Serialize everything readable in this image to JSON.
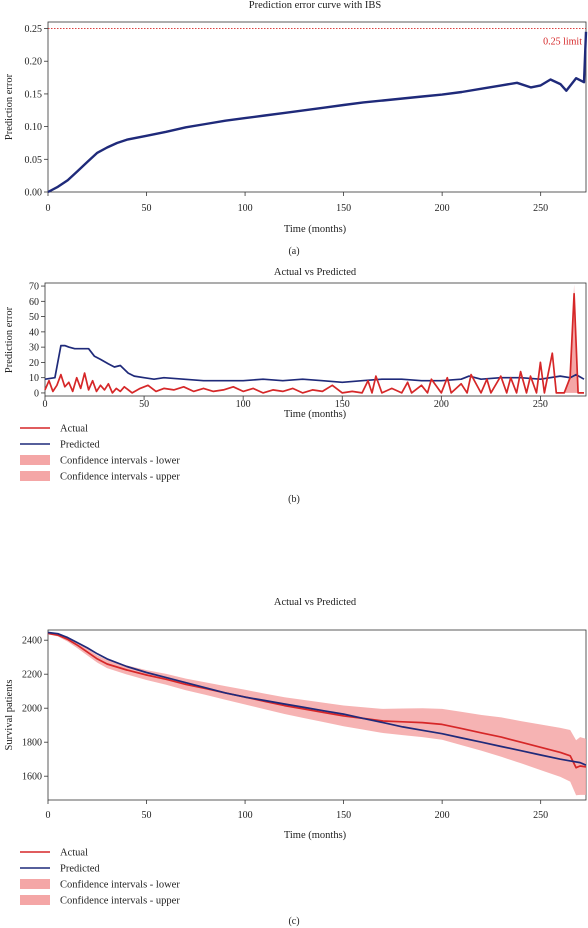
{
  "chart_data": [
    {
      "panel_label": "(a)",
      "type": "line",
      "title": "Prediction error curve with IBS",
      "xlabel": "Time (months)",
      "ylabel": "Prediction error",
      "xlim": [
        0,
        273
      ],
      "ylim": [
        0,
        0.26
      ],
      "xticks": [
        "0",
        "50",
        "100",
        "150",
        "200",
        "250"
      ],
      "yticks": [
        "0.00",
        "0.05",
        "0.10",
        "0.15",
        "0.20",
        "0.25"
      ],
      "reference_line": {
        "y": 0.25,
        "label": "0.25 limit",
        "color": "#d62728"
      },
      "series": [
        {
          "color": "#1f2a7a",
          "x": [
            0,
            5,
            10,
            15,
            20,
            25,
            30,
            35,
            40,
            50,
            60,
            70,
            80,
            90,
            100,
            110,
            120,
            130,
            140,
            150,
            160,
            170,
            180,
            190,
            200,
            210,
            220,
            230,
            238,
            245,
            250,
            255,
            260,
            263,
            268,
            272,
            273
          ],
          "y": [
            0.0,
            0.008,
            0.018,
            0.032,
            0.046,
            0.06,
            0.068,
            0.075,
            0.08,
            0.086,
            0.092,
            0.099,
            0.104,
            0.109,
            0.113,
            0.117,
            0.121,
            0.125,
            0.129,
            0.133,
            0.137,
            0.14,
            0.143,
            0.146,
            0.149,
            0.153,
            0.158,
            0.163,
            0.167,
            0.16,
            0.163,
            0.172,
            0.165,
            0.155,
            0.174,
            0.168,
            0.245
          ]
        }
      ]
    },
    {
      "panel_label": "(b)",
      "type": "line",
      "title": "Actual vs Predicted",
      "xlabel": "Time (months)",
      "ylabel": "Prediction error",
      "xlim": [
        0,
        273
      ],
      "ylim": [
        -2,
        72
      ],
      "xticks": [
        "0",
        "50",
        "100",
        "150",
        "200",
        "250"
      ],
      "yticks": [
        "0",
        "10",
        "20",
        "30",
        "40",
        "50",
        "60",
        "70"
      ],
      "legend": {
        "placement": "below-left",
        "entries": [
          {
            "label": "Actual",
            "kind": "line",
            "color": "#d62728"
          },
          {
            "label": "Predicted",
            "kind": "line",
            "color": "#1f2a7a"
          },
          {
            "label": "Confidence intervals - lower",
            "kind": "patch",
            "color": "#f4a6a6"
          },
          {
            "label": "Confidence intervals - upper",
            "kind": "patch",
            "color": "#f4a6a6"
          }
        ]
      },
      "series": [
        {
          "name": "Predicted",
          "color": "#1f2a7a",
          "x": [
            0,
            5,
            8,
            10,
            12,
            15,
            18,
            22,
            25,
            28,
            32,
            35,
            38,
            42,
            45,
            50,
            55,
            60,
            70,
            80,
            90,
            100,
            110,
            120,
            130,
            140,
            150,
            160,
            170,
            180,
            190,
            200,
            210,
            214,
            220,
            230,
            240,
            250,
            260,
            265,
            268,
            272
          ],
          "y": [
            9,
            10,
            31,
            31,
            30,
            29,
            29,
            29,
            24,
            22,
            19,
            17,
            18,
            13,
            11,
            10,
            9,
            10,
            9,
            8,
            8,
            8,
            9,
            8,
            9,
            8,
            7,
            8,
            9,
            9,
            8,
            8,
            9,
            11,
            9,
            10,
            10,
            9,
            11,
            10,
            12,
            9
          ]
        },
        {
          "name": "Actual",
          "color": "#d62728",
          "x": [
            0,
            2,
            4,
            6,
            8,
            10,
            12,
            14,
            16,
            18,
            20,
            22,
            24,
            26,
            28,
            30,
            32,
            34,
            36,
            38,
            40,
            44,
            48,
            52,
            56,
            60,
            65,
            70,
            75,
            80,
            85,
            90,
            95,
            100,
            105,
            110,
            115,
            120,
            125,
            130,
            135,
            140,
            145,
            150,
            155,
            160,
            163,
            165,
            167,
            170,
            175,
            180,
            183,
            185,
            190,
            193,
            195,
            200,
            203,
            205,
            210,
            213,
            215,
            220,
            223,
            225,
            230,
            233,
            235,
            238,
            240,
            243,
            245,
            248,
            250,
            252,
            254,
            256,
            258,
            262,
            265,
            267,
            269,
            272
          ],
          "y": [
            2,
            8,
            1,
            5,
            12,
            4,
            7,
            1,
            10,
            3,
            13,
            2,
            8,
            1,
            5,
            2,
            6,
            0,
            3,
            1,
            4,
            0,
            3,
            5,
            1,
            3,
            2,
            4,
            1,
            3,
            1,
            2,
            4,
            1,
            3,
            0,
            2,
            1,
            3,
            0,
            2,
            1,
            5,
            0,
            1,
            0,
            8,
            0,
            11,
            0,
            3,
            0,
            7,
            0,
            5,
            0,
            9,
            0,
            10,
            0,
            6,
            0,
            12,
            0,
            9,
            0,
            11,
            0,
            10,
            0,
            14,
            0,
            11,
            0,
            20,
            0,
            13,
            26,
            0,
            0,
            10,
            65,
            0,
            0
          ]
        },
        {
          "name": "Confidence intervals - upper",
          "color": "#f4a6a6",
          "x": [
            262,
            265,
            267,
            269,
            272
          ],
          "y": [
            0,
            12,
            71,
            0,
            0
          ]
        }
      ]
    },
    {
      "panel_label": "(c)",
      "type": "line",
      "title": "Actual vs Predicted",
      "xlabel": "Time (months)",
      "ylabel": "Survival patients",
      "xlim": [
        0,
        273
      ],
      "ylim": [
        1460,
        2460
      ],
      "xticks": [
        "0",
        "50",
        "100",
        "150",
        "200",
        "250"
      ],
      "yticks": [
        "1600",
        "1800",
        "2000",
        "2200",
        "2400"
      ],
      "legend": {
        "placement": "below-left",
        "entries": [
          {
            "label": "Actual",
            "kind": "line",
            "color": "#d62728"
          },
          {
            "label": "Predicted",
            "kind": "line",
            "color": "#1f2a7a"
          },
          {
            "label": "Confidence intervals - lower",
            "kind": "patch",
            "color": "#f4a6a6"
          },
          {
            "label": "Confidence intervals - upper",
            "kind": "patch",
            "color": "#f4a6a6"
          }
        ]
      },
      "series": [
        {
          "name": "Actual",
          "color": "#d62728",
          "x": [
            0,
            5,
            10,
            15,
            20,
            25,
            30,
            40,
            50,
            60,
            70,
            80,
            90,
            100,
            110,
            120,
            130,
            140,
            150,
            160,
            170,
            180,
            190,
            200,
            210,
            220,
            230,
            240,
            250,
            260,
            265,
            268,
            270,
            273
          ],
          "y": [
            2440,
            2430,
            2405,
            2370,
            2330,
            2290,
            2260,
            2225,
            2195,
            2170,
            2140,
            2115,
            2090,
            2065,
            2040,
            2015,
            1995,
            1975,
            1955,
            1940,
            1925,
            1920,
            1915,
            1905,
            1880,
            1855,
            1830,
            1800,
            1770,
            1740,
            1720,
            1650,
            1660,
            1655
          ]
        },
        {
          "name": "Predicted",
          "color": "#1f2a7a",
          "x": [
            0,
            5,
            10,
            15,
            20,
            25,
            30,
            40,
            50,
            60,
            70,
            80,
            90,
            100,
            110,
            120,
            130,
            140,
            150,
            160,
            170,
            180,
            190,
            200,
            210,
            220,
            230,
            240,
            250,
            260,
            265,
            270,
            273
          ],
          "y": [
            2445,
            2438,
            2415,
            2385,
            2355,
            2320,
            2290,
            2245,
            2210,
            2180,
            2150,
            2120,
            2090,
            2065,
            2045,
            2025,
            2005,
            1985,
            1965,
            1940,
            1915,
            1890,
            1870,
            1850,
            1825,
            1800,
            1775,
            1750,
            1725,
            1700,
            1690,
            1680,
            1665
          ]
        },
        {
          "name": "Confidence intervals - lower",
          "color": "#f4a6a6",
          "x": [
            0,
            5,
            10,
            15,
            20,
            25,
            30,
            40,
            50,
            60,
            70,
            80,
            90,
            100,
            110,
            120,
            130,
            140,
            150,
            160,
            170,
            180,
            190,
            200,
            210,
            220,
            230,
            240,
            250,
            260,
            265,
            268,
            270,
            273
          ],
          "y": [
            2435,
            2422,
            2392,
            2352,
            2310,
            2268,
            2236,
            2198,
            2166,
            2138,
            2106,
            2078,
            2050,
            2022,
            1994,
            1966,
            1942,
            1918,
            1894,
            1874,
            1854,
            1842,
            1830,
            1814,
            1782,
            1750,
            1714,
            1676,
            1636,
            1596,
            1568,
            1488,
            1490,
            1490
          ]
        },
        {
          "name": "Confidence intervals - upper",
          "color": "#f4a6a6",
          "x": [
            0,
            5,
            10,
            15,
            20,
            25,
            30,
            40,
            50,
            60,
            70,
            80,
            90,
            100,
            110,
            120,
            130,
            140,
            150,
            160,
            170,
            180,
            190,
            200,
            210,
            220,
            230,
            240,
            250,
            260,
            265,
            268,
            270,
            273
          ],
          "y": [
            2445,
            2438,
            2418,
            2388,
            2350,
            2312,
            2284,
            2252,
            2224,
            2202,
            2174,
            2152,
            2130,
            2108,
            2086,
            2064,
            2048,
            2032,
            2016,
            2006,
            1996,
            1998,
            2000,
            1996,
            1978,
            1960,
            1946,
            1924,
            1904,
            1884,
            1872,
            1812,
            1830,
            1820
          ]
        }
      ]
    }
  ]
}
